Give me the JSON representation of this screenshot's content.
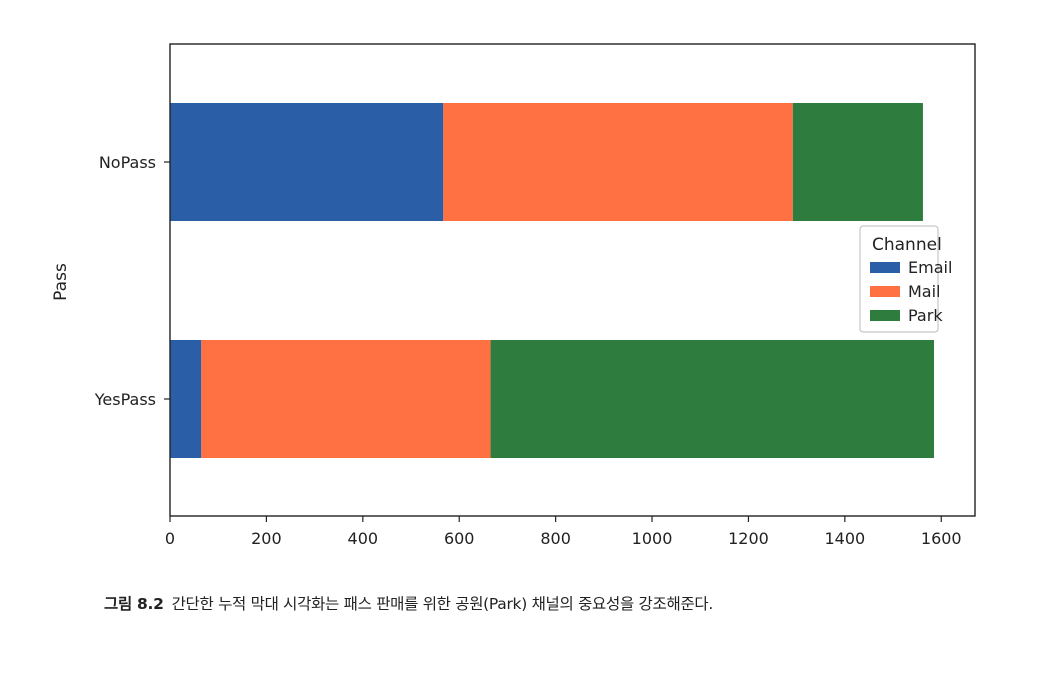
{
  "chart_data": {
    "type": "bar",
    "orientation": "horizontal",
    "stacked": true,
    "categories": [
      "NoPass",
      "YesPass"
    ],
    "series": [
      {
        "name": "Email",
        "values": [
          567,
          65
        ],
        "color": "#2a5fa8"
      },
      {
        "name": "Mail",
        "values": [
          725,
          600
        ],
        "color": "#ff7043"
      },
      {
        "name": "Park",
        "values": [
          270,
          920
        ],
        "color": "#2e7d3e"
      }
    ],
    "xlabel": "",
    "ylabel": "Pass",
    "xlim": [
      0,
      1670
    ],
    "xticks": [
      0,
      200,
      400,
      600,
      800,
      1000,
      1200,
      1400,
      1600
    ],
    "legend": {
      "title": "Channel",
      "placement": "center-right"
    },
    "grid": false
  },
  "caption": {
    "figure_number": "그림 8.2",
    "text": "간단한 누적 막대 시각화는 패스 판매를 위한 공원(Park) 채널의 중요성을 강조해준다."
  }
}
